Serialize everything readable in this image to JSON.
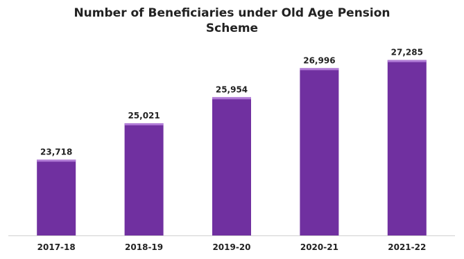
{
  "chart_data": {
    "type": "bar",
    "title_lines": [
      "Number of Beneficiaries under Old Age Pension",
      "Scheme"
    ],
    "categories": [
      "2017-18",
      "2018-19",
      "2019-20",
      "2020-21",
      "2021-22"
    ],
    "values": [
      23718,
      25021,
      25954,
      26996,
      27285
    ],
    "data_labels": [
      "23,718",
      "25,021",
      "25,954",
      "26,996",
      "27,285"
    ],
    "ylim": [
      21000,
      27700
    ],
    "xlabel": "",
    "ylabel": "",
    "grid": false,
    "legend": "none",
    "bar_color": "#7030a0",
    "bar_top_color": "#b07ad6",
    "axis_color": "#d0d0d0"
  }
}
